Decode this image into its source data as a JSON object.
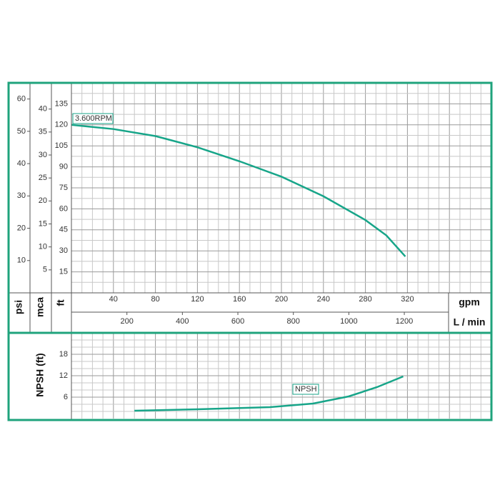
{
  "chart_data": [
    {
      "type": "line",
      "x_label": "gpm",
      "xlim": [
        0,
        400
      ],
      "xticks": [
        40,
        80,
        120,
        160,
        200,
        240,
        280,
        320
      ],
      "x2_label": "L / min",
      "x2lim": [
        0,
        1514
      ],
      "x2ticks": [
        200,
        400,
        600,
        800,
        1000,
        1200
      ],
      "y_label": "ft",
      "ylim": [
        0,
        150
      ],
      "yticks": [
        15,
        30,
        45,
        60,
        75,
        90,
        105,
        120,
        135
      ],
      "y2_label": "mca",
      "y2lim": [
        0,
        45.7
      ],
      "y2ticks": [
        5,
        10,
        15,
        20,
        25,
        30,
        35,
        40
      ],
      "y3_label": "psi",
      "y3lim": [
        0,
        65
      ],
      "y3ticks": [
        10,
        20,
        30,
        40,
        50,
        60
      ],
      "grid": true,
      "series": [
        {
          "name": "3.600RPM",
          "color": "#17a589",
          "x": [
            0,
            40,
            80,
            120,
            160,
            200,
            240,
            280,
            300,
            318
          ],
          "values": [
            120,
            117,
            112,
            104,
            94,
            83,
            69,
            52,
            41,
            26
          ]
        }
      ]
    },
    {
      "type": "line",
      "y_label": "NPSH (ft)",
      "xlim": [
        0,
        400
      ],
      "ylim": [
        0,
        24
      ],
      "yticks": [
        6,
        12,
        18
      ],
      "grid": true,
      "series": [
        {
          "name": "NPSH",
          "color": "#17a589",
          "x": [
            60,
            120,
            189,
            230,
            264,
            291,
            316
          ],
          "values": [
            2.2,
            2.6,
            3.2,
            4.2,
            6.2,
            8.8,
            11.8
          ]
        }
      ]
    }
  ]
}
